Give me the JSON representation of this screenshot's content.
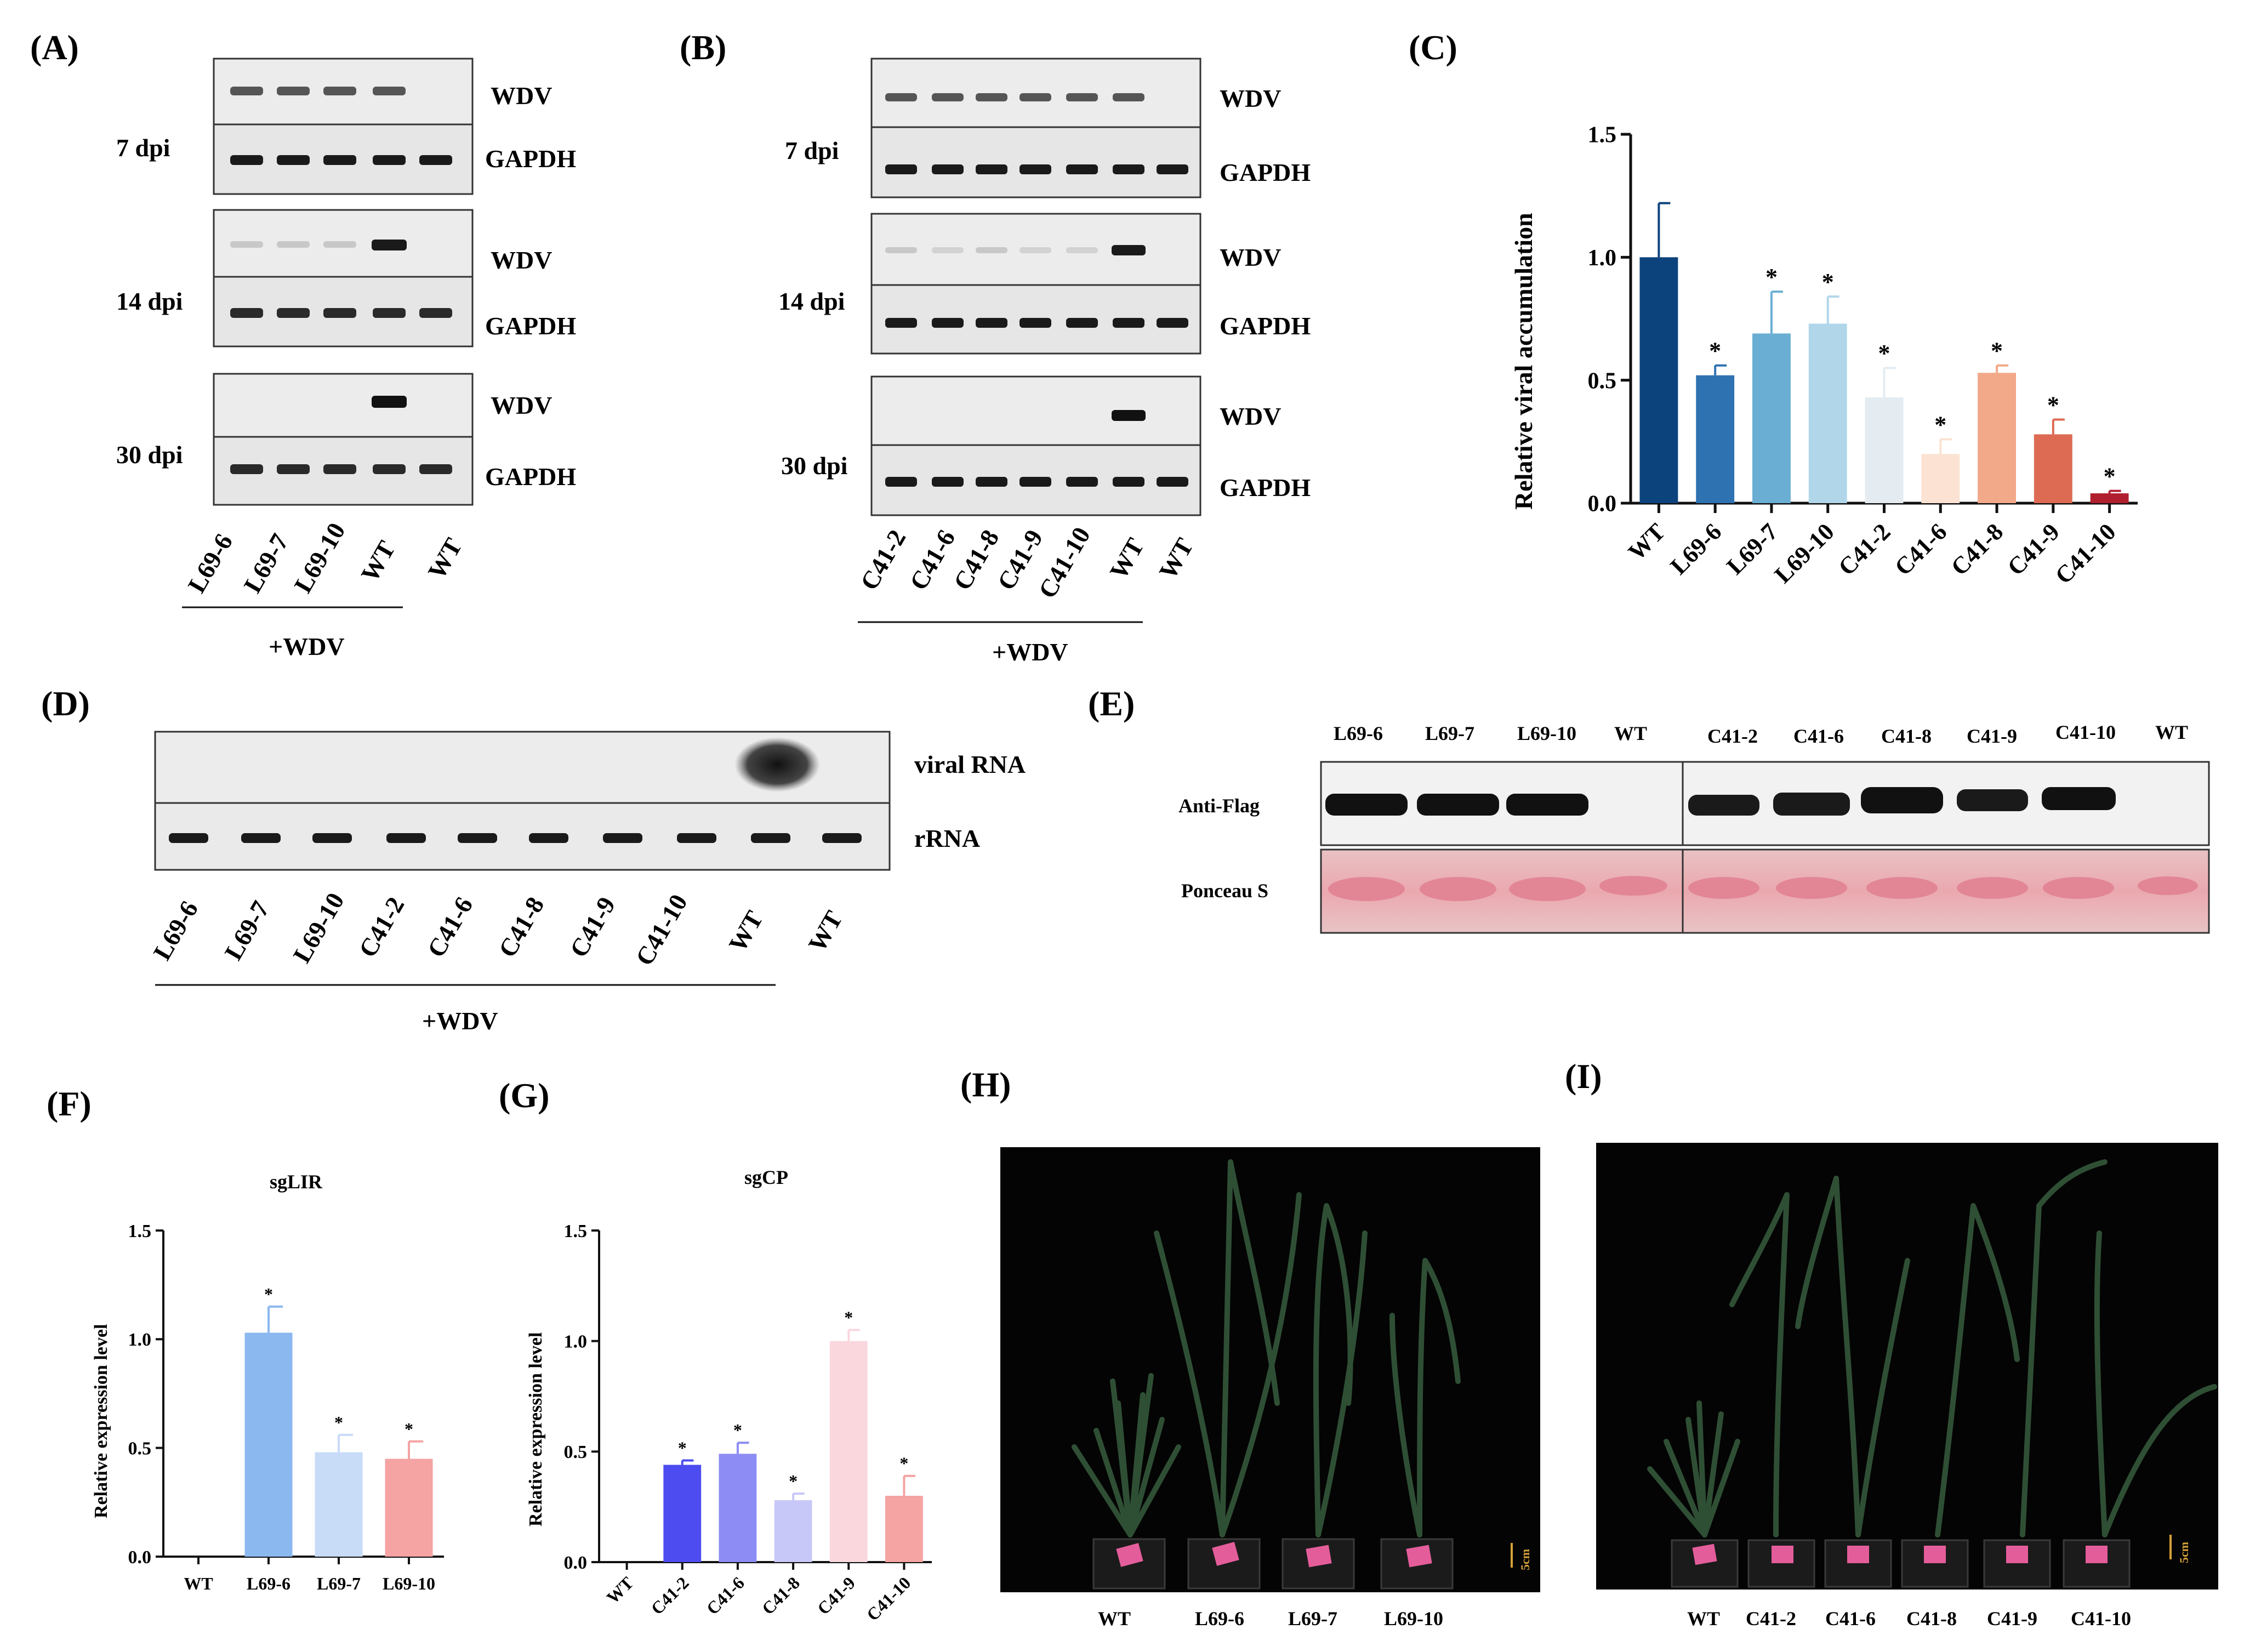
{
  "panels": {
    "A": {
      "label": "(A)",
      "rows": [
        {
          "time": "7 dpi",
          "top": "WDV",
          "bottom": "GAPDH"
        },
        {
          "time": "14 dpi",
          "top": "WDV",
          "bottom": "GAPDH"
        },
        {
          "time": "30 dpi",
          "top": "WDV",
          "bottom": "GAPDH"
        }
      ],
      "lanes": [
        "L69-6",
        "L69-7",
        "L69-10",
        "WT",
        "WT"
      ],
      "treatment": "+WDV"
    },
    "B": {
      "label": "(B)",
      "rows": [
        {
          "time": "7 dpi",
          "top": "WDV",
          "bottom": "GAPDH"
        },
        {
          "time": "14 dpi",
          "top": "WDV",
          "bottom": "GAPDH"
        },
        {
          "time": "30 dpi",
          "top": "WDV",
          "bottom": "GAPDH"
        }
      ],
      "lanes": [
        "C41-2",
        "C41-6",
        "C41-8",
        "C41-9",
        "C41-10",
        "WT",
        "WT"
      ],
      "treatment": "+WDV"
    },
    "D": {
      "label": "(D)",
      "rows": [
        "viral RNA",
        "rRNA"
      ],
      "lanes": [
        "L69-6",
        "L69-7",
        "L69-10",
        "C41-2",
        "C41-6",
        "C41-8",
        "C41-9",
        "C41-10",
        "WT",
        "WT"
      ],
      "treatment": "+WDV"
    },
    "E": {
      "label": "(E)",
      "lanes_left": [
        "L69-6",
        "L69-7",
        "L69-10",
        "WT"
      ],
      "lanes_right": [
        "C41-2",
        "C41-6",
        "C41-8",
        "C41-9",
        "C41-10",
        "WT"
      ],
      "rows": [
        "Anti-Flag",
        "Ponceau S"
      ]
    },
    "H": {
      "label": "(H)",
      "labels": [
        "WT",
        "L69-6",
        "L69-7",
        "L69-10"
      ],
      "scale": "5cm"
    },
    "I": {
      "label": "(I)",
      "labels": [
        "WT",
        "C41-2",
        "C41-6",
        "C41-8",
        "C41-9",
        "C41-10"
      ],
      "scale": "5cm"
    }
  },
  "chart_data": [
    {
      "panel": "(C)",
      "type": "bar",
      "title": "",
      "xlabel": "",
      "ylabel": "Relative viral accumulation",
      "ylim": [
        0,
        1.5
      ],
      "yticks": [
        "0.0",
        "0.5",
        "1.0",
        "1.5"
      ],
      "categories": [
        "WT",
        "L69-6",
        "L69-7",
        "L69-10",
        "C41-2",
        "C41-6",
        "C41-8",
        "C41-9",
        "C41-10"
      ],
      "values": [
        1.0,
        0.52,
        0.69,
        0.73,
        0.43,
        0.2,
        0.53,
        0.28,
        0.04
      ],
      "errors": [
        0.22,
        0.04,
        0.17,
        0.11,
        0.12,
        0.06,
        0.03,
        0.06,
        0.01
      ],
      "significance": [
        "",
        "*",
        "*",
        "*",
        "*",
        "*",
        "*",
        "*",
        "*"
      ],
      "colors": [
        "#0d437d",
        "#2f72b2",
        "#6aaed3",
        "#b1d6ea",
        "#e4ecf2",
        "#fbe2d3",
        "#f2a98a",
        "#dd6b54",
        "#b01f2e"
      ]
    },
    {
      "panel": "(F)",
      "type": "bar",
      "title": "sgLIR",
      "xlabel": "",
      "ylabel": "Relative expression level",
      "ylim": [
        0,
        1.5
      ],
      "yticks": [
        "0.0",
        "0.5",
        "1.0",
        "1.5"
      ],
      "categories": [
        "WT",
        "L69-6",
        "L69-7",
        "L69-10"
      ],
      "values": [
        0,
        1.03,
        0.48,
        0.45
      ],
      "errors": [
        0,
        0.12,
        0.08,
        0.08
      ],
      "significance": [
        "",
        "*",
        "*",
        "*"
      ],
      "colors": [
        "#8cb8f0",
        "#8cb8f0",
        "#c8dbf7",
        "#f5a3a3"
      ]
    },
    {
      "panel": "(G)",
      "type": "bar",
      "title": "sgCP",
      "xlabel": "",
      "ylabel": "Relative expression level",
      "ylim": [
        0,
        1.5
      ],
      "yticks": [
        "0.0",
        "0.5",
        "1.0",
        "1.5"
      ],
      "categories": [
        "WT",
        "C41-2",
        "C41-6",
        "C41-8",
        "C41-9",
        "C41-10"
      ],
      "values": [
        0,
        0.44,
        0.49,
        0.28,
        1.0,
        0.3
      ],
      "errors": [
        0,
        0.02,
        0.05,
        0.03,
        0.05,
        0.09
      ],
      "significance": [
        "",
        "*",
        "*",
        "*",
        "*",
        "*"
      ],
      "colors": [
        "#4c4cf0",
        "#4c4cf0",
        "#8c8cf4",
        "#c8c8f8",
        "#f9d7dd",
        "#f5a3a3"
      ]
    }
  ]
}
